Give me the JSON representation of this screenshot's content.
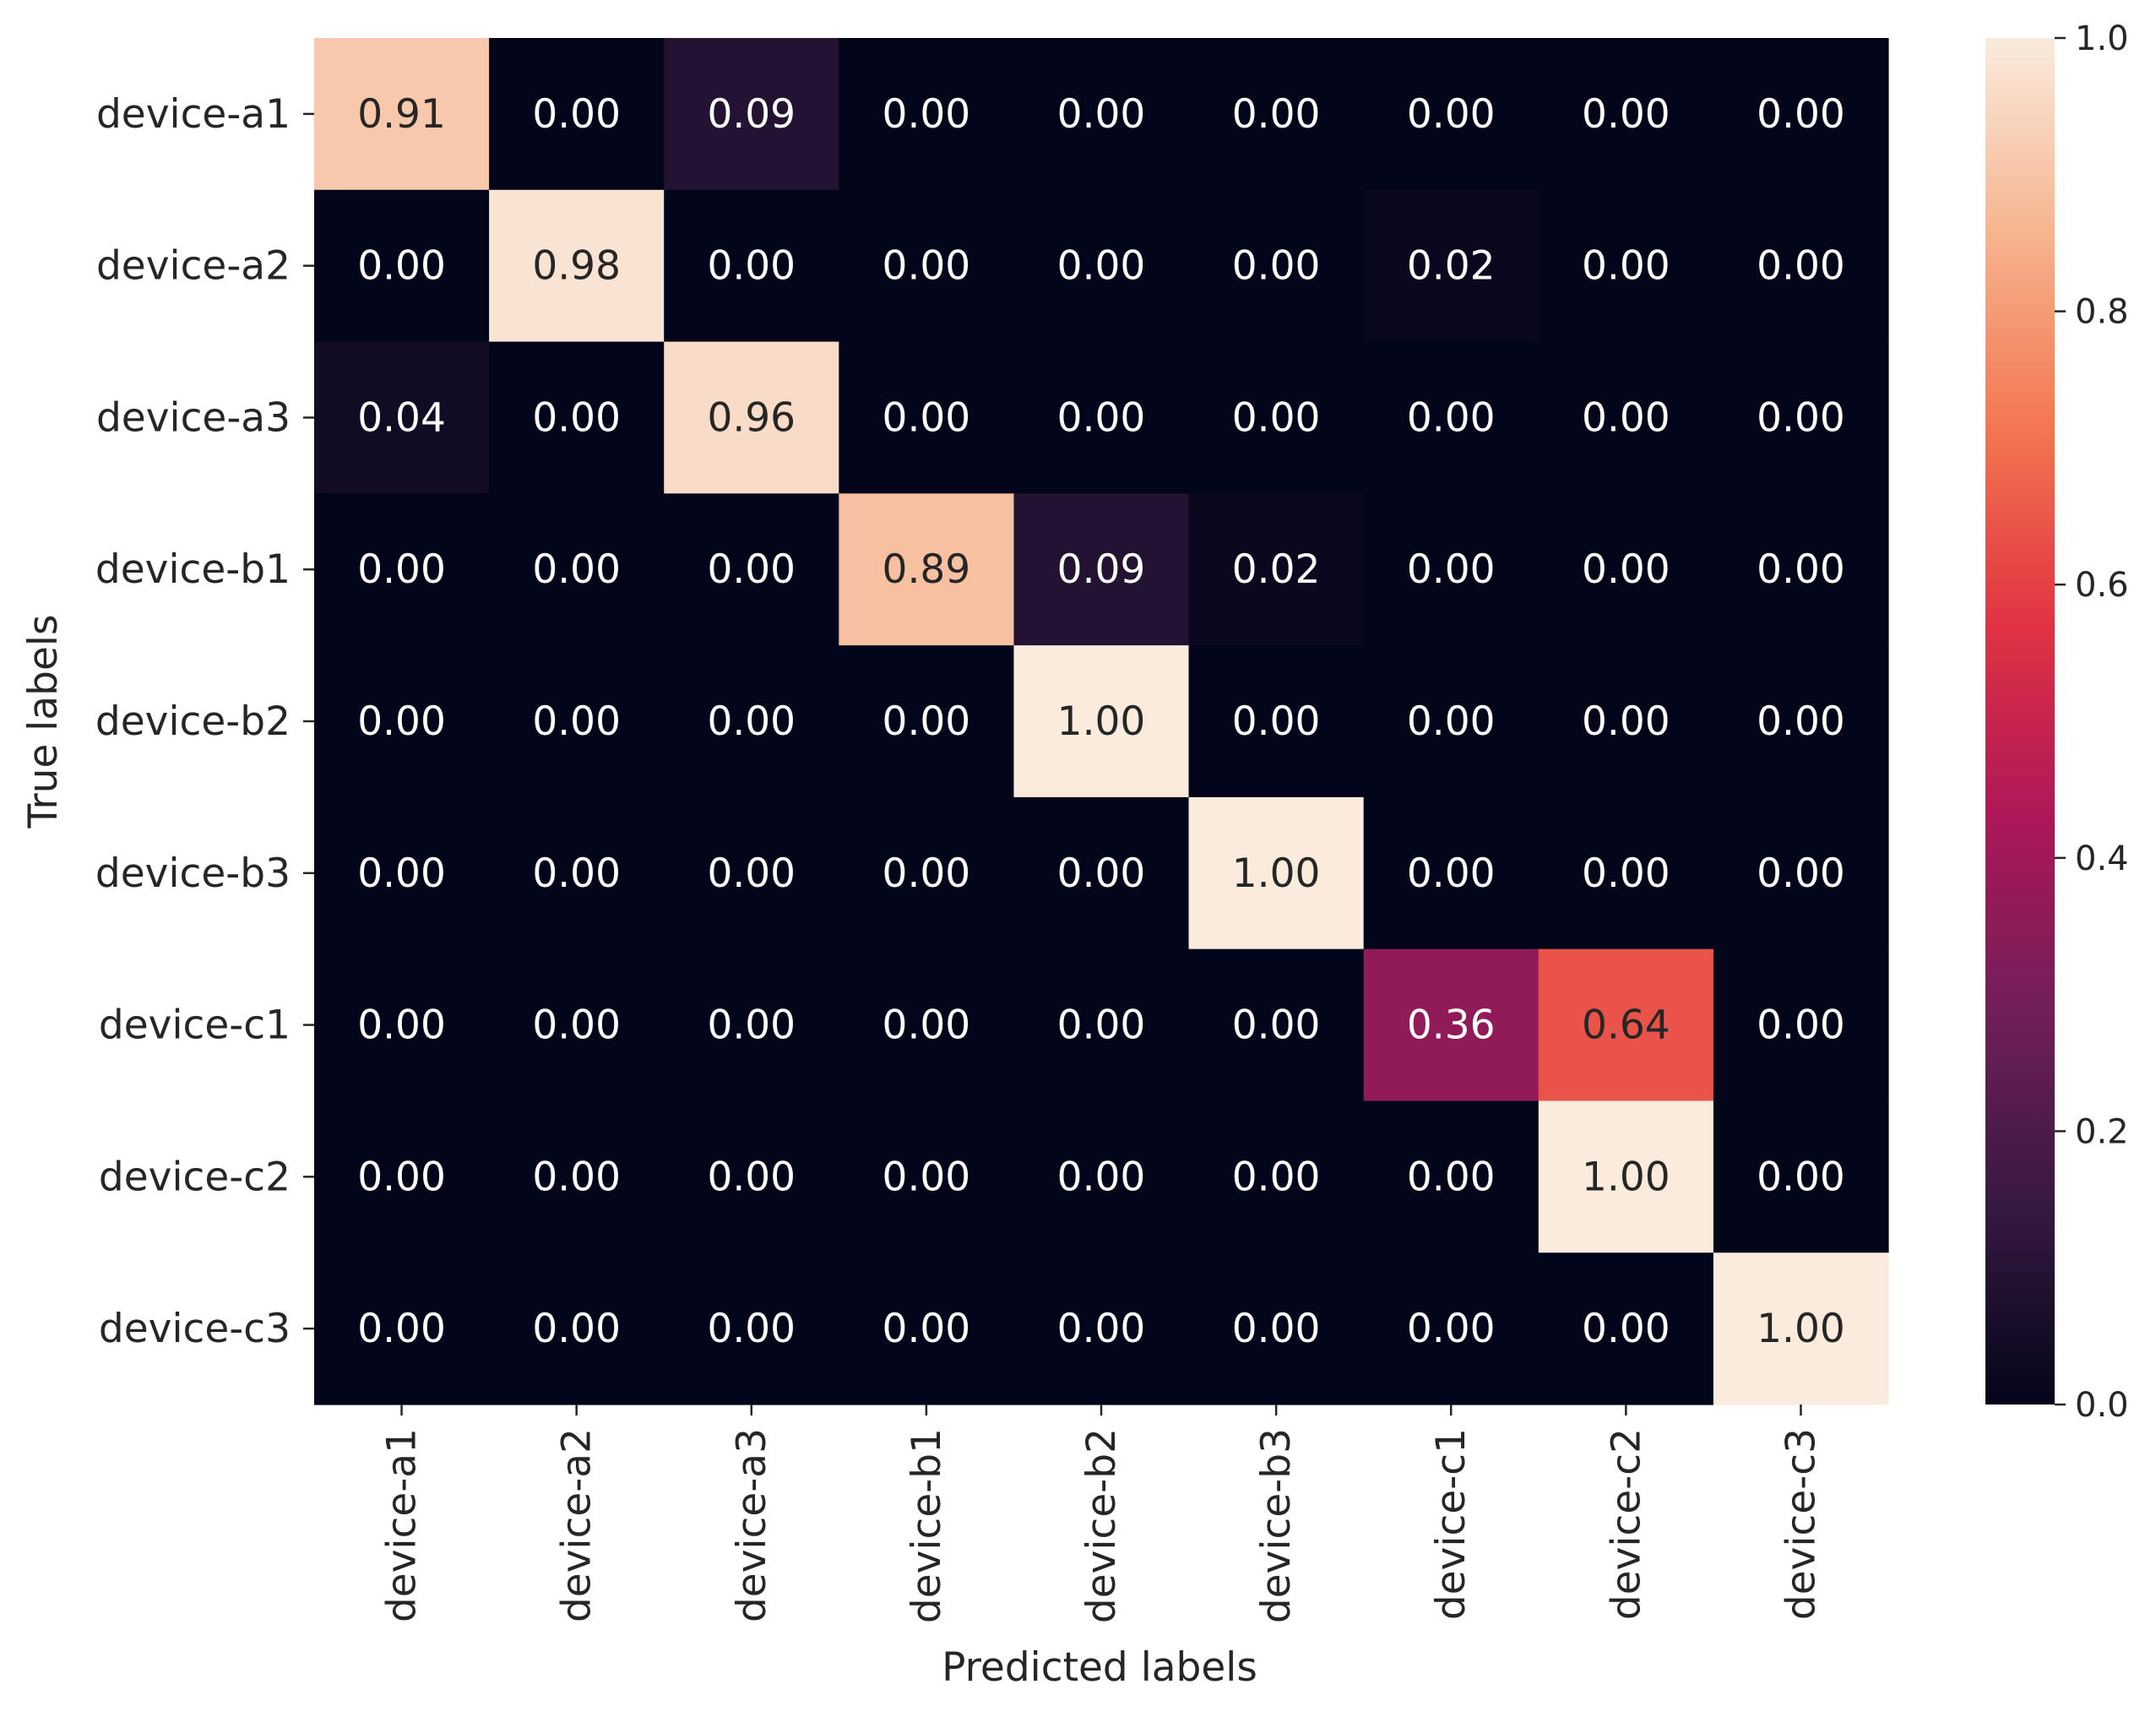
{
  "chart_data": {
    "type": "heatmap",
    "xlabel": "Predicted labels",
    "ylabel": "True labels",
    "x_categories": [
      "device-a1",
      "device-a2",
      "device-a3",
      "device-b1",
      "device-b2",
      "device-b3",
      "device-c1",
      "device-c2",
      "device-c3"
    ],
    "y_categories": [
      "device-a1",
      "device-a2",
      "device-a3",
      "device-b1",
      "device-b2",
      "device-b3",
      "device-c1",
      "device-c2",
      "device-c3"
    ],
    "values": [
      [
        0.91,
        0.0,
        0.09,
        0.0,
        0.0,
        0.0,
        0.0,
        0.0,
        0.0
      ],
      [
        0.0,
        0.98,
        0.0,
        0.0,
        0.0,
        0.0,
        0.02,
        0.0,
        0.0
      ],
      [
        0.04,
        0.0,
        0.96,
        0.0,
        0.0,
        0.0,
        0.0,
        0.0,
        0.0
      ],
      [
        0.0,
        0.0,
        0.0,
        0.89,
        0.09,
        0.02,
        0.0,
        0.0,
        0.0
      ],
      [
        0.0,
        0.0,
        0.0,
        0.0,
        1.0,
        0.0,
        0.0,
        0.0,
        0.0
      ],
      [
        0.0,
        0.0,
        0.0,
        0.0,
        0.0,
        1.0,
        0.0,
        0.0,
        0.0
      ],
      [
        0.0,
        0.0,
        0.0,
        0.0,
        0.0,
        0.0,
        0.36,
        0.64,
        0.0
      ],
      [
        0.0,
        0.0,
        0.0,
        0.0,
        0.0,
        0.0,
        0.0,
        1.0,
        0.0
      ],
      [
        0.0,
        0.0,
        0.0,
        0.0,
        0.0,
        0.0,
        0.0,
        0.0,
        1.0
      ]
    ],
    "value_format": "0.00",
    "colorbar": {
      "range": [
        0.0,
        1.0
      ],
      "ticks": [
        "0.0",
        "0.2",
        "0.4",
        "0.6",
        "0.8",
        "1.0"
      ]
    },
    "colormap_stops": [
      "#03051a",
      "#36193e",
      "#701f57",
      "#ad1759",
      "#e13342",
      "#f37651",
      "#f6b48f",
      "#faebdd"
    ],
    "light_text_color": "#ffffff",
    "dark_text_color": "#262626"
  }
}
